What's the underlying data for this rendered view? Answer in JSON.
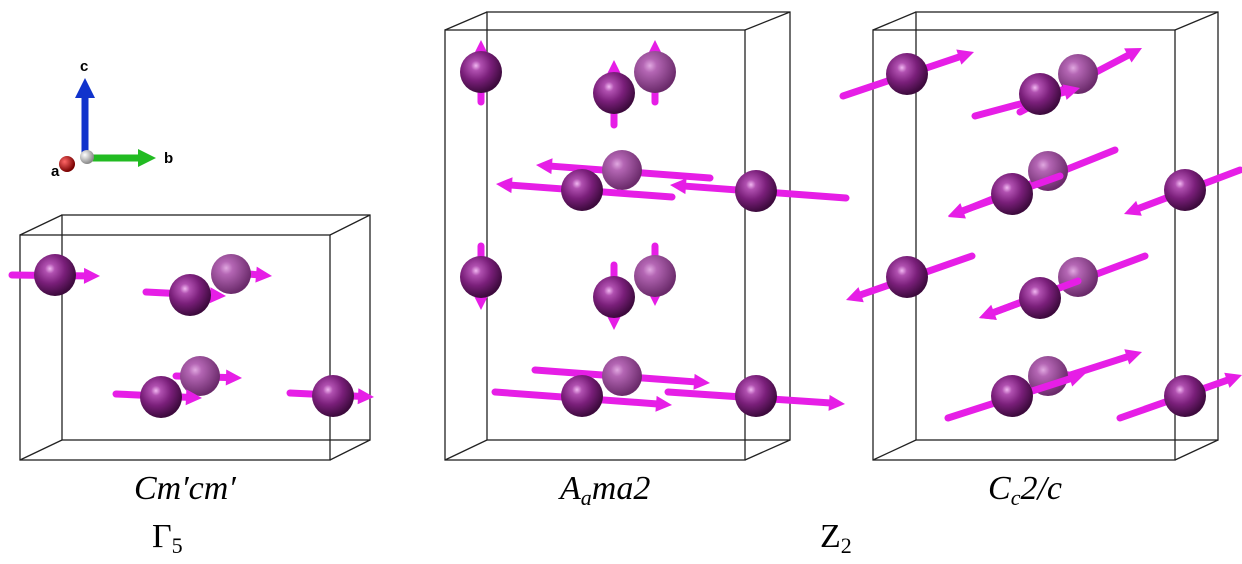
{
  "axes": {
    "a": "a",
    "b": "b",
    "c": "c"
  },
  "panels": [
    {
      "group_main": "Cm′cm′",
      "group_sub": "",
      "group_tail": ""
    },
    {
      "group_main": "A",
      "group_sub": "a",
      "group_tail": "ma2"
    },
    {
      "group_main": "C",
      "group_sub": "c",
      "group_tail": "2/c"
    }
  ],
  "irreps": [
    {
      "main": "Γ",
      "sub": "5"
    },
    {
      "main": "Z",
      "sub": "2"
    }
  ],
  "colors": {
    "atom": "#7a1f7a",
    "atom_highlight": "#e8a3e8",
    "spin": "#e61ee6",
    "box": "#222222",
    "axis_a": "#cc1111",
    "axis_b": "#22bb22",
    "axis_c": "#1133cc"
  }
}
